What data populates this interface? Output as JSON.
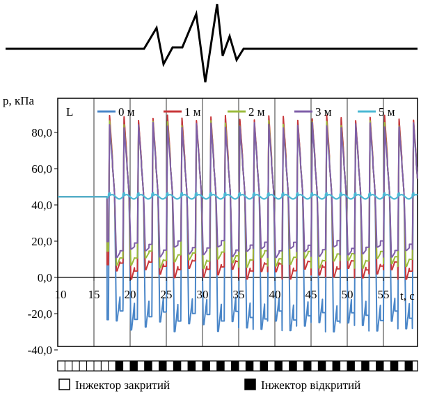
{
  "chart_data": {
    "type": "line",
    "title": "",
    "ylabel": "p, кПа",
    "xlabel": "t, с",
    "xlim": [
      10,
      60
    ],
    "ylim": [
      -40,
      90
    ],
    "x_ticks": [
      10,
      15,
      20,
      25,
      30,
      35,
      40,
      45,
      50,
      55
    ],
    "x_tick_labels": [
      "10",
      "15",
      "20",
      "25",
      "30",
      "35",
      "40",
      "45",
      "50",
      "55"
    ],
    "y_ticks": [
      -40,
      -20,
      0,
      20,
      40,
      60,
      80
    ],
    "y_tick_labels": [
      "-40,0",
      "-20,0",
      "0,0",
      "20,0",
      "40,0",
      "60,0",
      "80,0"
    ],
    "grid": "vertical",
    "legend_placement": "top",
    "legend_marker": "L",
    "baseline_kpa": 44.5,
    "cycle_period_s": 2.0,
    "first_opening_s": 17,
    "series": [
      {
        "name": "0 м",
        "color": "#4a86c8",
        "peak_kpa": 86,
        "trough_kpa": -27
      },
      {
        "name": "1 м",
        "color": "#c8373a",
        "peak_kpa": 88,
        "trough_kpa": 2
      },
      {
        "name": "2 м",
        "color": "#9bbb3c",
        "peak_kpa": 85,
        "trough_kpa": 8
      },
      {
        "name": "3 м",
        "color": "#7f5fa8",
        "peak_kpa": 84,
        "trough_kpa": 14
      },
      {
        "name": "5 м",
        "color": "#4bb8d4",
        "peak_kpa": 47,
        "trough_kpa": 44
      }
    ]
  },
  "injector_legend": {
    "closed_label": "Інжектор закритий",
    "open_label": "Інжектор відкритий"
  }
}
